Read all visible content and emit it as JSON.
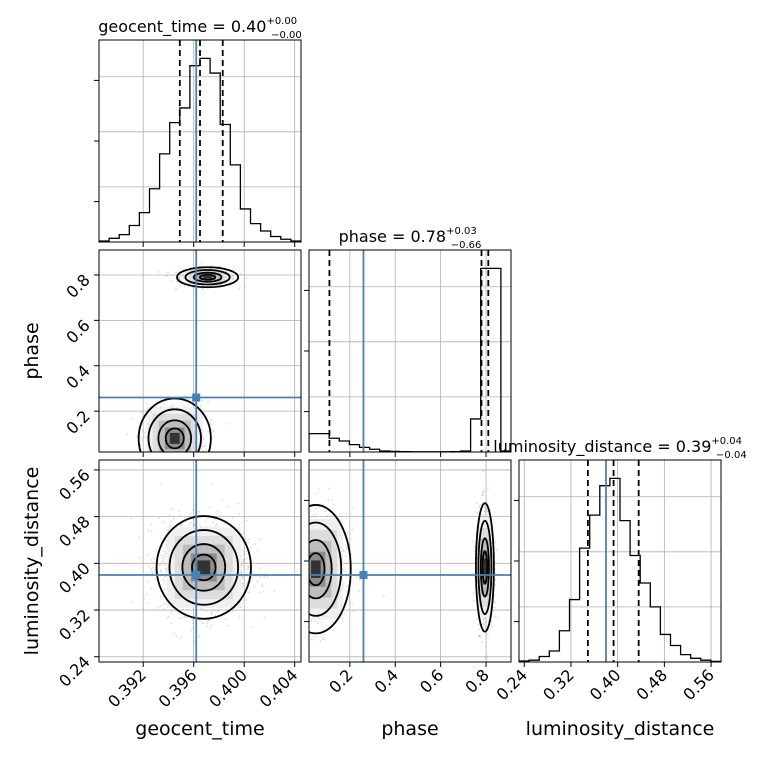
{
  "chart_data": {
    "type": "corner",
    "parameters": [
      "geocent_time",
      "phase",
      "luminosity_distance"
    ],
    "axis_labels": {
      "geocent_time": "geocent_time",
      "phase": "phase",
      "luminosity_distance": "luminosity_distance"
    },
    "titles": [
      {
        "param": "geocent_time",
        "name": "geocent_time",
        "median": "0.40",
        "plus": "+0.00",
        "minus": "−0.00"
      },
      {
        "param": "phase",
        "name": "phase",
        "median": "0.78",
        "plus": "+0.03",
        "minus": "−0.66"
      },
      {
        "param": "luminosity_distance",
        "name": "luminosity_distance",
        "median": "0.39",
        "plus": "+0.04",
        "minus": "−0.04"
      }
    ],
    "ranges": {
      "geocent_time": [
        0.3885,
        0.4045
      ],
      "phase": [
        0.02,
        0.91
      ],
      "luminosity_distance": [
        0.231,
        0.577
      ]
    },
    "ticks": {
      "geocent_time": [
        0.392,
        0.396,
        0.4,
        0.404
      ],
      "phase": [
        0.2,
        0.4,
        0.6,
        0.8
      ],
      "luminosity_distance": [
        0.24,
        0.32,
        0.4,
        0.48,
        0.56
      ]
    },
    "tick_labels": {
      "geocent_time": [
        "0.392",
        "0.396",
        "0.400",
        "0.404"
      ],
      "phase": [
        "0.2",
        "0.4",
        "0.6",
        "0.8"
      ],
      "luminosity_distance": [
        "0.24",
        "0.32",
        "0.40",
        "0.48",
        "0.56"
      ]
    },
    "truths": {
      "geocent_time": 0.3962,
      "phase": 0.26,
      "luminosity_distance": 0.38
    },
    "quantiles": {
      "geocent_time": [
        0.3949,
        0.3965,
        0.3983
      ],
      "phase": [
        0.11,
        0.78,
        0.81
      ],
      "luminosity_distance": [
        0.349,
        0.393,
        0.436
      ]
    },
    "histograms": {
      "geocent_time": {
        "edges": [
          0.3885,
          0.3893,
          0.3901,
          0.3909,
          0.3917,
          0.3925,
          0.3933,
          0.3941,
          0.3949,
          0.3957,
          0.3965,
          0.3973,
          0.3981,
          0.3989,
          0.3997,
          0.4005,
          0.4013,
          0.4021,
          0.4029,
          0.4037,
          0.4045
        ],
        "counts": [
          0.5,
          2,
          4,
          9,
          16,
          29,
          48,
          65,
          73,
          96,
          100,
          92,
          64,
          42,
          18,
          10,
          6,
          3,
          1.5,
          0.5
        ]
      },
      "phase": {
        "edges": [
          0.02,
          0.0645,
          0.109,
          0.1535,
          0.198,
          0.2425,
          0.287,
          0.3315,
          0.376,
          0.4205,
          0.465,
          0.5095,
          0.554,
          0.5985,
          0.643,
          0.6875,
          0.732,
          0.7765,
          0.821,
          0.8655,
          0.91
        ],
        "counts": [
          10,
          10,
          7.5,
          6,
          4,
          2.5,
          1.5,
          0.5,
          0.3,
          0.2,
          0.1,
          0.1,
          0.1,
          0.1,
          0.2,
          0.5,
          18,
          100,
          100,
          0.5
        ]
      },
      "luminosity_distance": {
        "edges": [
          0.231,
          0.2483,
          0.2656,
          0.2829,
          0.3002,
          0.3175,
          0.3348,
          0.3521,
          0.3694,
          0.3867,
          0.404,
          0.4213,
          0.4386,
          0.4559,
          0.4732,
          0.4905,
          0.5078,
          0.5251,
          0.5424,
          0.5597,
          0.577
        ],
        "counts": [
          0.5,
          1,
          3,
          6,
          17,
          34,
          62,
          80,
          96,
          100,
          77,
          58,
          43,
          30,
          15,
          9,
          4,
          2,
          1,
          0.3
        ]
      }
    }
  }
}
